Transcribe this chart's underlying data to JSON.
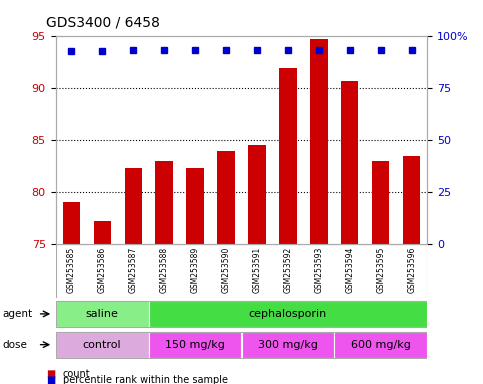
{
  "title": "GDS3400 / 6458",
  "samples": [
    "GSM253585",
    "GSM253586",
    "GSM253587",
    "GSM253588",
    "GSM253589",
    "GSM253590",
    "GSM253591",
    "GSM253592",
    "GSM253593",
    "GSM253594",
    "GSM253595",
    "GSM253596"
  ],
  "bar_values": [
    79.0,
    77.2,
    82.3,
    83.0,
    82.3,
    84.0,
    84.5,
    92.0,
    94.8,
    90.7,
    83.0,
    83.5
  ],
  "percentile_values": [
    93,
    93,
    93.5,
    93.5,
    93.5,
    93.5,
    93.5,
    93.5,
    93.5,
    93.5,
    93.5,
    93.5
  ],
  "bar_color": "#cc0000",
  "dot_color": "#0000cc",
  "ylim_left": [
    75,
    95
  ],
  "ylim_right": [
    0,
    100
  ],
  "yticks_left": [
    75,
    80,
    85,
    90,
    95
  ],
  "yticks_right": [
    0,
    25,
    50,
    75,
    100
  ],
  "ytick_labels_right": [
    "0",
    "25",
    "50",
    "75",
    "100%"
  ],
  "agent_groups": [
    {
      "label": "saline",
      "start": 0,
      "end": 3,
      "color": "#88ee88"
    },
    {
      "label": "cephalosporin",
      "start": 3,
      "end": 12,
      "color": "#44dd44"
    }
  ],
  "dose_groups": [
    {
      "label": "control",
      "start": 0,
      "end": 3,
      "color": "#ddaadd"
    },
    {
      "label": "150 mg/kg",
      "start": 3,
      "end": 6,
      "color": "#ee55ee"
    },
    {
      "label": "300 mg/kg",
      "start": 6,
      "end": 9,
      "color": "#ee55ee"
    },
    {
      "label": "600 mg/kg",
      "start": 9,
      "end": 12,
      "color": "#ee55ee"
    }
  ],
  "legend_count_color": "#cc0000",
  "legend_pct_color": "#0000cc",
  "bg_color": "#ffffff",
  "plot_bg_color": "#ffffff",
  "grid_color": "#000000",
  "sample_bg_color": "#cccccc",
  "border_color": "#aaaaaa"
}
